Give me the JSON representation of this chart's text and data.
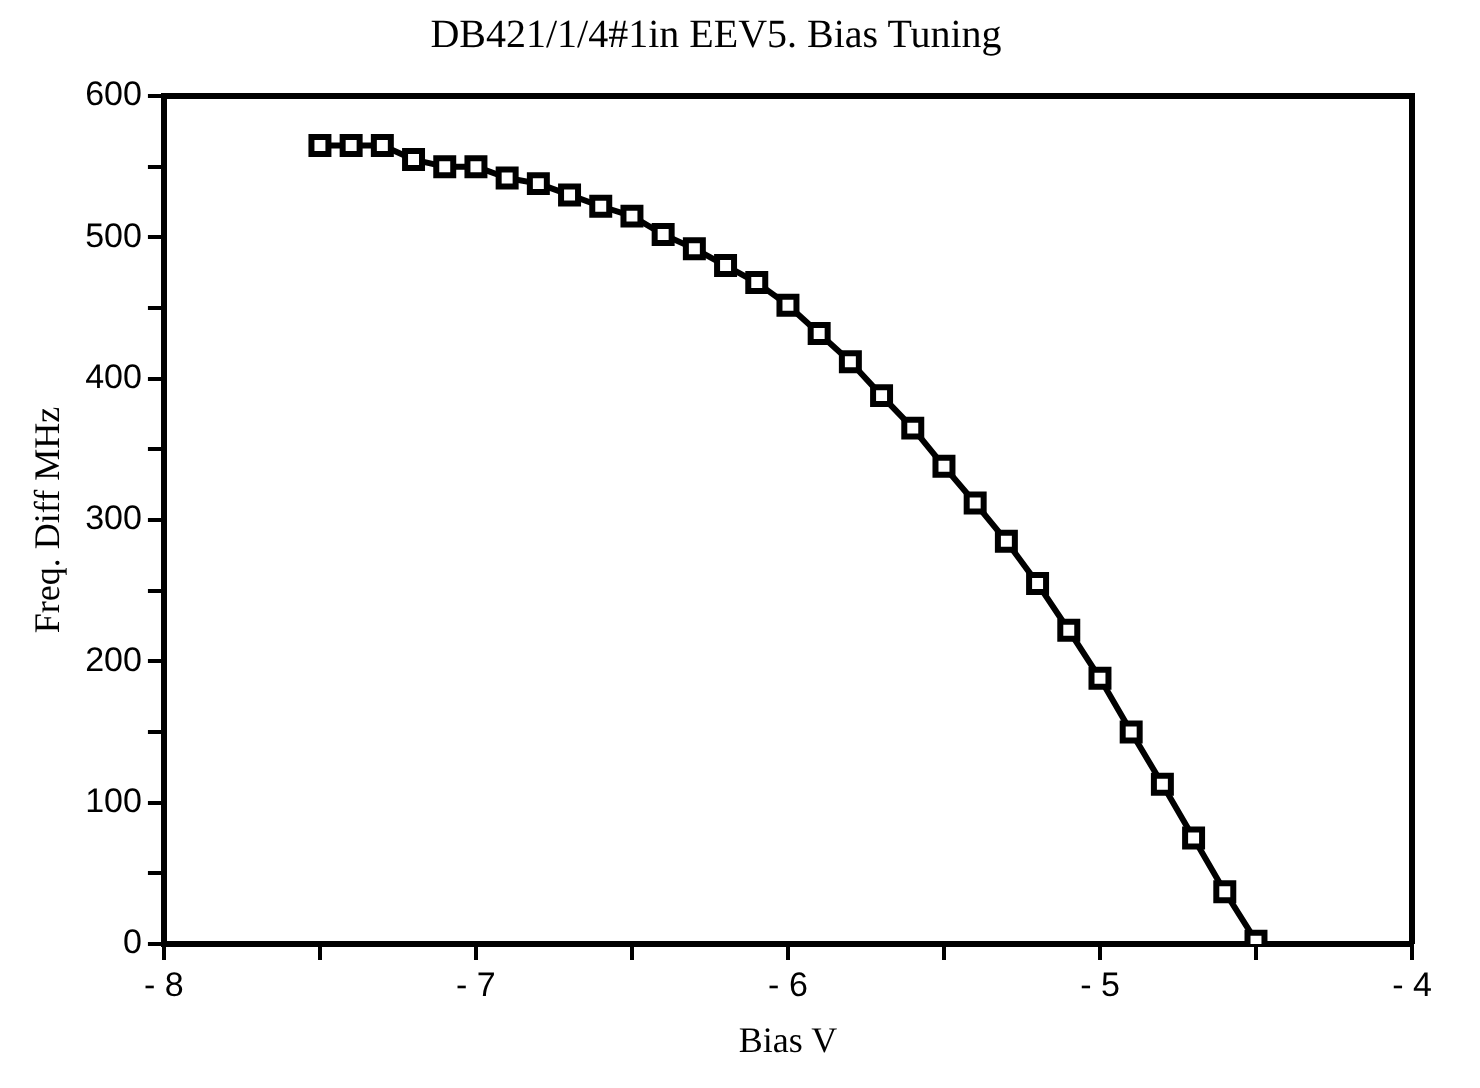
{
  "chart_data": {
    "type": "line",
    "title": "DB421/1/4#1in EEV5. Bias Tuning",
    "xlabel": "Bias V",
    "ylabel": "Freq. Diff MHz",
    "x": [
      -7.5,
      -7.4,
      -7.3,
      -7.2,
      -7.1,
      -7.0,
      -6.9,
      -6.8,
      -6.7,
      -6.6,
      -6.5,
      -6.4,
      -6.3,
      -6.2,
      -6.1,
      -6.0,
      -5.9,
      -5.8,
      -5.7,
      -5.6,
      -5.5,
      -5.4,
      -5.3,
      -5.2,
      -5.1,
      -5.0,
      -4.9,
      -4.8,
      -4.7,
      -4.6,
      -4.5
    ],
    "series": [
      {
        "color": "#000000",
        "values": [
          565,
          565,
          565,
          555,
          550,
          550,
          542,
          538,
          530,
          522,
          515,
          502,
          492,
          480,
          468,
          452,
          432,
          412,
          388,
          365,
          338,
          312,
          285,
          255,
          222,
          188,
          150,
          113,
          75,
          37,
          2
        ]
      }
    ],
    "xlim": [
      -8,
      -4
    ],
    "xticks": [
      {
        "value": -8,
        "label": "- 8"
      },
      {
        "value": -7.5,
        "label": null
      },
      {
        "value": -7,
        "label": "- 7"
      },
      {
        "value": -6.5,
        "label": null
      },
      {
        "value": -6,
        "label": "- 6"
      },
      {
        "value": -5.5,
        "label": null
      },
      {
        "value": -5,
        "label": "- 5"
      },
      {
        "value": -4.5,
        "label": null
      },
      {
        "value": -4,
        "label": "- 4"
      }
    ],
    "ylim": [
      0,
      600
    ],
    "yticks": [
      0,
      {
        "value": 50,
        "label": null
      },
      100,
      {
        "value": 150,
        "label": null
      },
      200,
      {
        "value": 250,
        "label": null
      },
      300,
      {
        "value": 350,
        "label": null
      },
      400,
      {
        "value": 450,
        "label": null
      },
      500,
      {
        "value": 550,
        "label": null
      },
      600
    ],
    "grid": false,
    "legend": false,
    "marker": "square",
    "line_style": "solid"
  }
}
